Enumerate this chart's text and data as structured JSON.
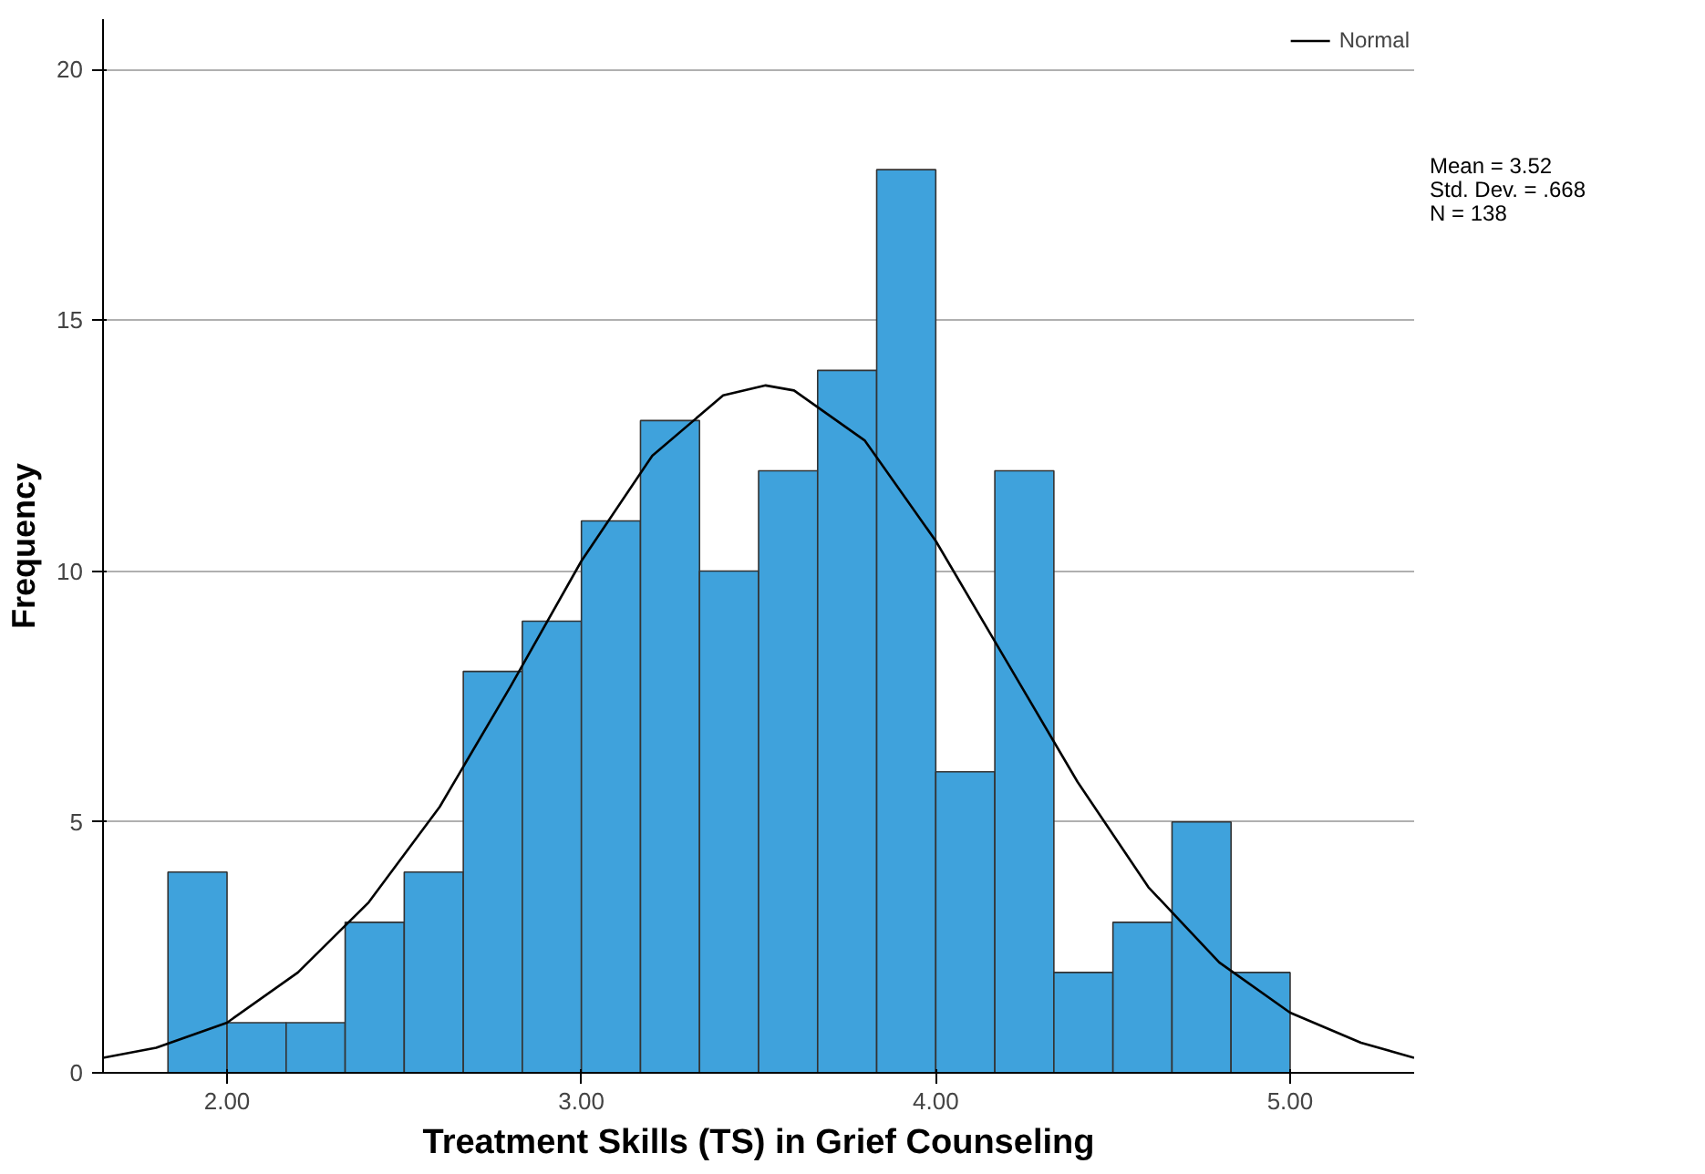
{
  "chart_data": {
    "type": "histogram",
    "xlabel": "Treatment Skills (TS) in Grief Counseling",
    "ylabel": "Frequency",
    "bins": [
      1.8333,
      2.0,
      2.1667,
      2.3333,
      2.5,
      2.6667,
      2.8333,
      3.0,
      3.1667,
      3.3333,
      3.5,
      3.6667,
      3.8333,
      4.0,
      4.1667,
      4.3333,
      4.5,
      4.6667,
      4.8333,
      5.0
    ],
    "series": [
      {
        "color": "#3fa2dc",
        "values": [
          4,
          1,
          1,
          3,
          4,
          8,
          9,
          11,
          13,
          10,
          12,
          14,
          18,
          6,
          12,
          2,
          3,
          5,
          2
        ]
      },
      {
        "type": "line",
        "name": "Normal",
        "color": "#000000",
        "x": [
          1.65,
          1.8,
          2.0,
          2.2,
          2.4,
          2.6,
          2.8,
          3.0,
          3.2,
          3.4,
          3.52,
          3.6,
          3.8,
          4.0,
          4.2,
          4.4,
          4.6,
          4.8,
          5.0,
          5.2,
          5.35
        ],
        "values": [
          0.3,
          0.5,
          1.0,
          2.0,
          3.4,
          5.3,
          7.7,
          10.2,
          12.3,
          13.5,
          13.7,
          13.6,
          12.6,
          10.6,
          8.2,
          5.8,
          3.7,
          2.2,
          1.2,
          0.6,
          0.3
        ]
      }
    ],
    "xlim": [
      1.65,
      5.35
    ],
    "ylim": [
      0,
      21
    ],
    "xticks": [
      {
        "value": 2,
        "label": "2.00"
      },
      {
        "value": 3,
        "label": "3.00"
      },
      {
        "value": 4,
        "label": "4.00"
      },
      {
        "value": 5,
        "label": "5.00"
      }
    ],
    "yticks": [
      0,
      5,
      10,
      15,
      20
    ],
    "grid": "y",
    "legend": "top right",
    "annotations": [
      "Mean = 3.52",
      "Std. Dev. = .668",
      "N = 138"
    ]
  }
}
